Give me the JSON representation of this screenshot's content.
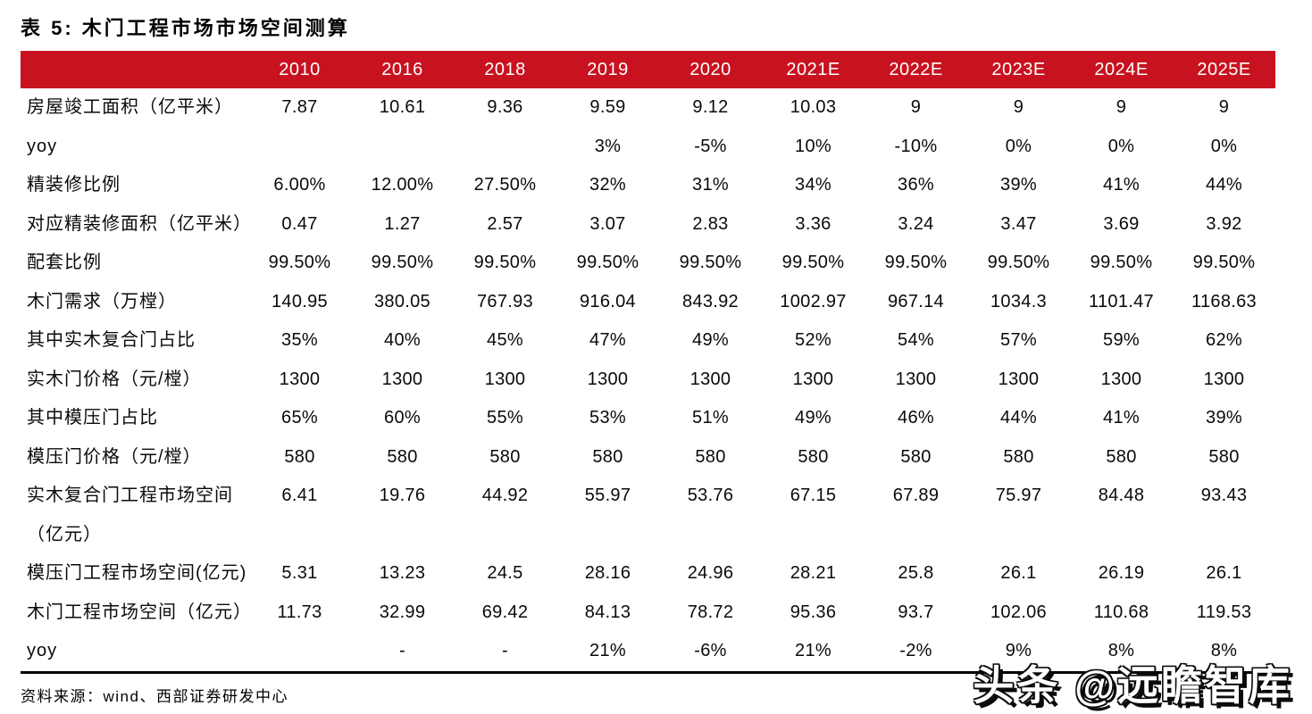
{
  "page": {
    "title": "表 5:  木门工程市场市场空间测算",
    "source": "资料来源：wind、西部证券研发中心",
    "watermark": "头条 @远瞻智库"
  },
  "colors": {
    "header_bg": "#C8121F",
    "header_text": "#FFFFFF",
    "body_text": "#0A0A0A",
    "rule_line": "#000000"
  },
  "chart_data": {
    "type": "table",
    "title": "表 5: 木门工程市场市场空间测算",
    "columns": [
      "2010",
      "2016",
      "2018",
      "2019",
      "2020",
      "2021E",
      "2022E",
      "2023E",
      "2024E",
      "2025E"
    ],
    "rows": [
      {
        "label": "房屋竣工面积（亿平米）",
        "values": [
          "7.87",
          "10.61",
          "9.36",
          "9.59",
          "9.12",
          "10.03",
          "9",
          "9",
          "9",
          "9"
        ]
      },
      {
        "label": "yoy",
        "values": [
          "",
          "",
          "",
          "3%",
          "-5%",
          "10%",
          "-10%",
          "0%",
          "0%",
          "0%"
        ]
      },
      {
        "label": "精装修比例",
        "values": [
          "6.00%",
          "12.00%",
          "27.50%",
          "32%",
          "31%",
          "34%",
          "36%",
          "39%",
          "41%",
          "44%"
        ]
      },
      {
        "label": "对应精装修面积（亿平米）",
        "values": [
          "0.47",
          "1.27",
          "2.57",
          "3.07",
          "2.83",
          "3.36",
          "3.24",
          "3.47",
          "3.69",
          "3.92"
        ]
      },
      {
        "label": "配套比例",
        "values": [
          "99.50%",
          "99.50%",
          "99.50%",
          "99.50%",
          "99.50%",
          "99.50%",
          "99.50%",
          "99.50%",
          "99.50%",
          "99.50%"
        ]
      },
      {
        "label": "木门需求（万樘）",
        "values": [
          "140.95",
          "380.05",
          "767.93",
          "916.04",
          "843.92",
          "1002.97",
          "967.14",
          "1034.3",
          "1101.47",
          "1168.63"
        ]
      },
      {
        "label": "其中实木复合门占比",
        "values": [
          "35%",
          "40%",
          "45%",
          "47%",
          "49%",
          "52%",
          "54%",
          "57%",
          "59%",
          "62%"
        ]
      },
      {
        "label": "实木门价格（元/樘）",
        "values": [
          "1300",
          "1300",
          "1300",
          "1300",
          "1300",
          "1300",
          "1300",
          "1300",
          "1300",
          "1300"
        ]
      },
      {
        "label": "其中模压门占比",
        "values": [
          "65%",
          "60%",
          "55%",
          "53%",
          "51%",
          "49%",
          "46%",
          "44%",
          "41%",
          "39%"
        ]
      },
      {
        "label": "模压门价格（元/樘）",
        "values": [
          "580",
          "580",
          "580",
          "580",
          "580",
          "580",
          "580",
          "580",
          "580",
          "580"
        ]
      },
      {
        "label": "实木复合门工程市场空间\n（亿元）",
        "twoline": true,
        "values": [
          "6.41",
          "19.76",
          "44.92",
          "55.97",
          "53.76",
          "67.15",
          "67.89",
          "75.97",
          "84.48",
          "93.43"
        ]
      },
      {
        "label": "模压门工程市场空间(亿元)",
        "values": [
          "5.31",
          "13.23",
          "24.5",
          "28.16",
          "24.96",
          "28.21",
          "25.8",
          "26.1",
          "26.19",
          "26.1"
        ]
      },
      {
        "label": "木门工程市场空间（亿元）",
        "values": [
          "11.73",
          "32.99",
          "69.42",
          "84.13",
          "78.72",
          "95.36",
          "93.7",
          "102.06",
          "110.68",
          "119.53"
        ]
      },
      {
        "label": "yoy",
        "values": [
          "",
          "-",
          "-",
          "21%",
          "-6%",
          "21%",
          "-2%",
          "9%",
          "8%",
          "8%"
        ]
      }
    ]
  }
}
